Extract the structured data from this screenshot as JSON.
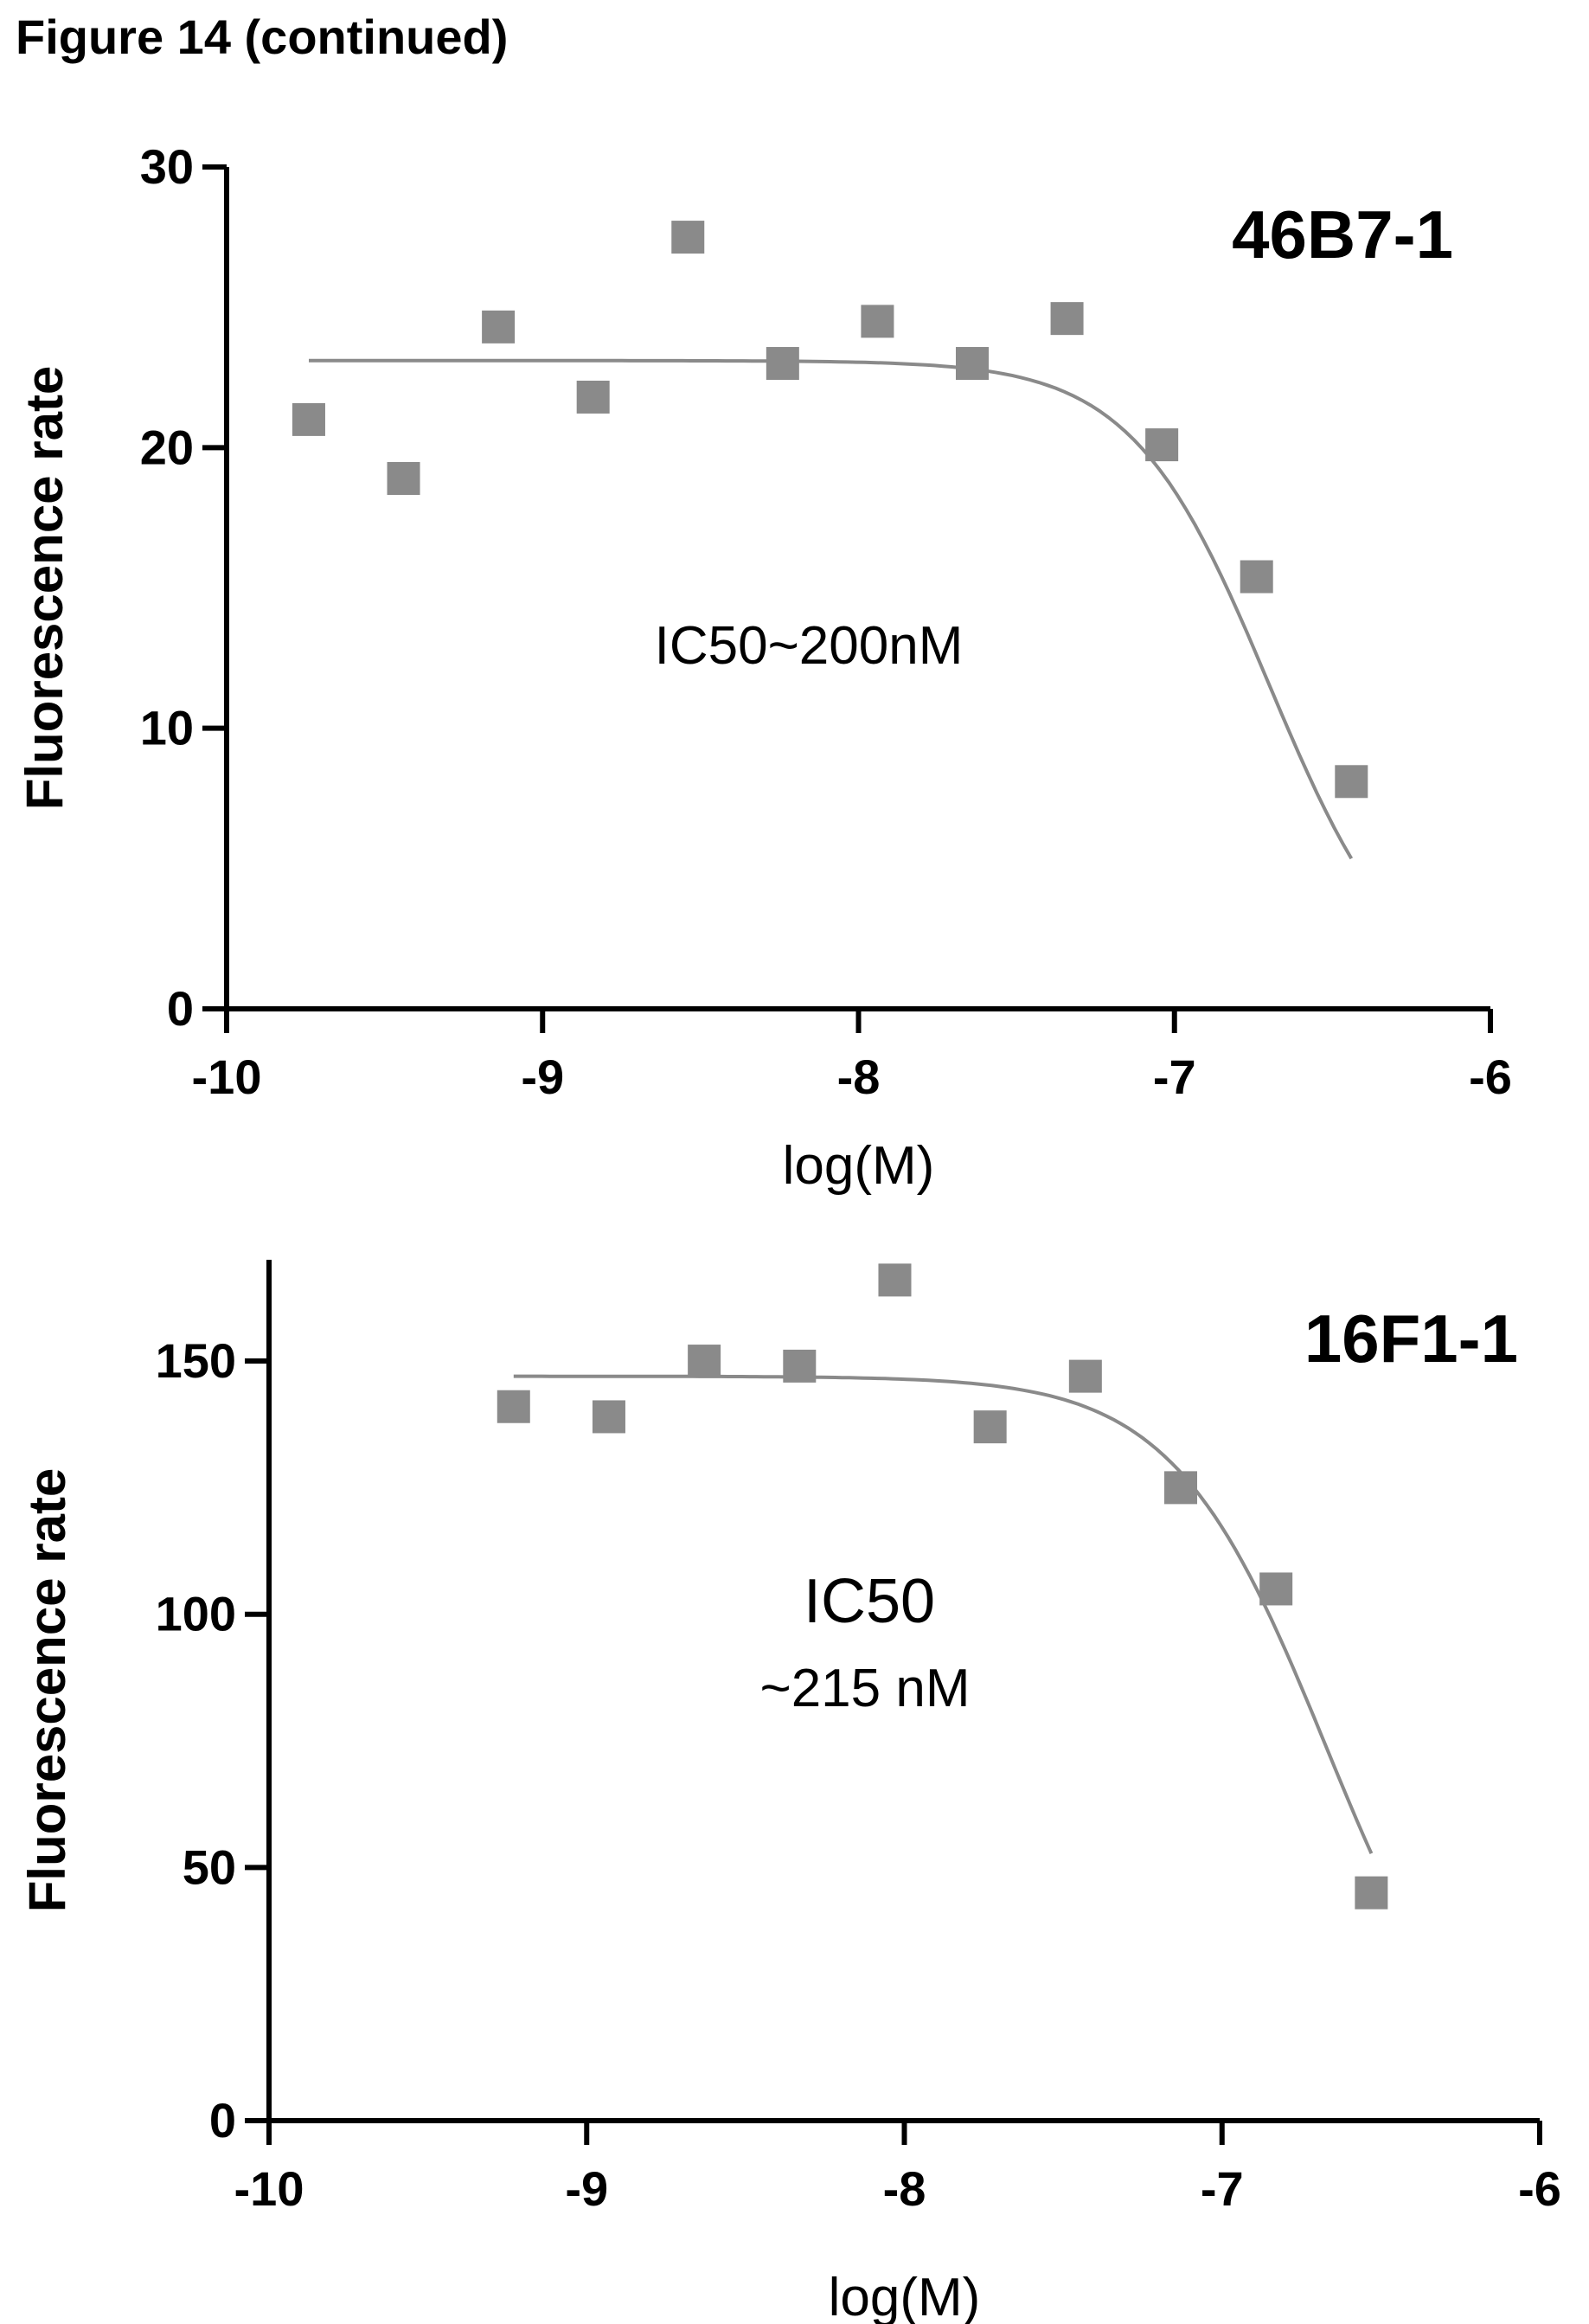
{
  "figure_heading": "Figure 14 (continued)",
  "chart_data": [
    {
      "type": "scatter",
      "title": "46B7-1",
      "xlabel": "log(M)",
      "ylabel": "Fluorescence rate",
      "xlim": [
        -10,
        -6
      ],
      "ylim": [
        0,
        30
      ],
      "x_ticks": [
        -10,
        -9,
        -8,
        -7,
        -6
      ],
      "y_ticks": [
        0,
        10,
        20,
        30
      ],
      "annotation": "IC50~200nM",
      "points": [
        {
          "x": -9.74,
          "y": 21.0
        },
        {
          "x": -9.44,
          "y": 18.9
        },
        {
          "x": -9.14,
          "y": 24.3
        },
        {
          "x": -8.84,
          "y": 21.8
        },
        {
          "x": -8.54,
          "y": 27.5
        },
        {
          "x": -8.24,
          "y": 23.0
        },
        {
          "x": -7.94,
          "y": 24.5
        },
        {
          "x": -7.64,
          "y": 23.0
        },
        {
          "x": -7.34,
          "y": 24.6
        },
        {
          "x": -7.04,
          "y": 20.1
        },
        {
          "x": -6.74,
          "y": 15.4
        },
        {
          "x": -6.44,
          "y": 8.1
        }
      ],
      "fit": {
        "top": 23.1,
        "bottom": 0,
        "log_ic50": -6.7,
        "hill": 2.0,
        "x_range": [
          -9.74,
          -6.44
        ]
      },
      "marker_color": "#8a8a8a",
      "line_color": "#8a8a8a"
    },
    {
      "type": "scatter",
      "title": "16F1-1",
      "xlabel": "log(M)",
      "ylabel": "Fluorescence rate",
      "xlim": [
        -10,
        -6
      ],
      "ylim": [
        0,
        170
      ],
      "x_ticks": [
        -10,
        -9,
        -8,
        -7,
        -6
      ],
      "y_ticks": [
        0,
        50,
        100,
        150
      ],
      "annotation_lines": [
        "IC50",
        "~215 nM"
      ],
      "points": [
        {
          "x": -9.23,
          "y": 141
        },
        {
          "x": -8.93,
          "y": 139
        },
        {
          "x": -8.63,
          "y": 150
        },
        {
          "x": -8.33,
          "y": 149
        },
        {
          "x": -8.03,
          "y": 166
        },
        {
          "x": -7.73,
          "y": 137
        },
        {
          "x": -7.43,
          "y": 147
        },
        {
          "x": -7.13,
          "y": 125
        },
        {
          "x": -6.83,
          "y": 105
        },
        {
          "x": -6.53,
          "y": 45
        }
      ],
      "fit": {
        "top": 147,
        "bottom": 0,
        "log_ic50": -6.67,
        "hill": 1.8,
        "x_range": [
          -9.23,
          -6.53
        ]
      },
      "marker_color": "#8a8a8a",
      "line_color": "#8a8a8a"
    }
  ]
}
